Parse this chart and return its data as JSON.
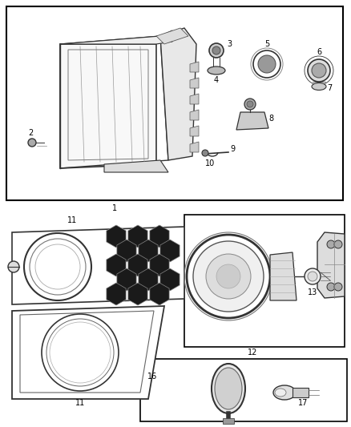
{
  "background": "#ffffff",
  "border_color": "#000000",
  "text_color": "#000000",
  "fig_w": 4.38,
  "fig_h": 5.33,
  "dpi": 100
}
